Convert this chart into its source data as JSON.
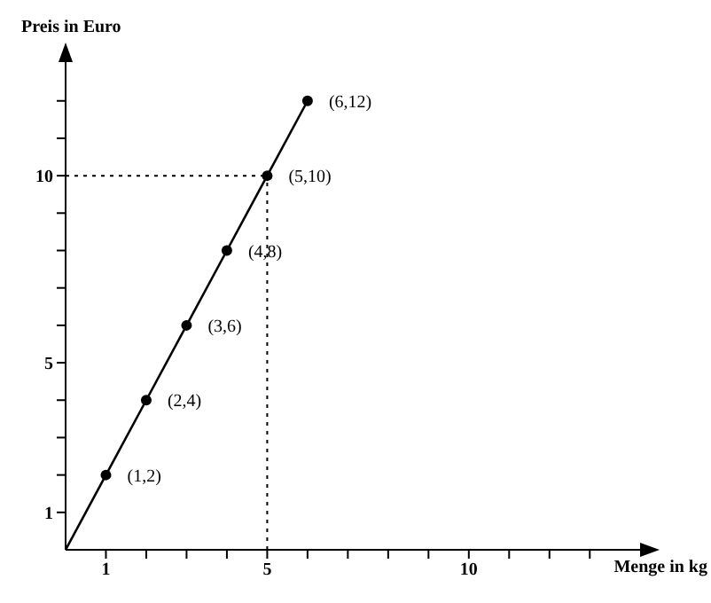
{
  "chart_data": {
    "type": "line",
    "xlabel": "Menge in kg",
    "ylabel": "Preis in Euro",
    "xlim": [
      0,
      13.5
    ],
    "ylim": [
      0,
      12.8
    ],
    "xticks": [
      1,
      {
        "value": 2,
        "label": null
      },
      {
        "value": 3,
        "label": null
      },
      {
        "value": 4,
        "label": null
      },
      5,
      {
        "value": 6,
        "label": null
      },
      {
        "value": 7,
        "label": null
      },
      {
        "value": 8,
        "label": null
      },
      {
        "value": 9,
        "label": null
      },
      10,
      {
        "value": 11,
        "label": null
      },
      {
        "value": 12,
        "label": null
      },
      {
        "value": 13,
        "label": null
      }
    ],
    "yticks": [
      1,
      {
        "value": 2,
        "label": null
      },
      {
        "value": 3,
        "label": null
      },
      {
        "value": 4,
        "label": null
      },
      5,
      {
        "value": 6,
        "label": null
      },
      {
        "value": 7,
        "label": null
      },
      {
        "value": 8,
        "label": null
      },
      {
        "value": 9,
        "label": null
      },
      10,
      {
        "value": 11,
        "label": null
      },
      {
        "value": 12,
        "label": null
      }
    ],
    "grid": false,
    "legend": false,
    "ref_lines": [
      {
        "axis": "x",
        "value": 5,
        "line_style": "dotted",
        "color": "#000000"
      },
      {
        "axis": "y",
        "value": 10,
        "line_style": "dotted",
        "color": "#000000"
      }
    ],
    "series": [
      {
        "type": "line",
        "color": "#000000",
        "marker": "none",
        "x": [
          0,
          1,
          2,
          3,
          4,
          5,
          6
        ],
        "values": [
          0,
          2,
          4,
          6,
          8,
          10,
          12
        ]
      },
      {
        "type": "scatter",
        "color": "#000000",
        "marker": "circle",
        "x": [
          1,
          2,
          3,
          4,
          5,
          6
        ],
        "values": [
          2,
          4,
          6,
          8,
          10,
          12
        ]
      }
    ],
    "annotations": [
      {
        "text": "(1,2)",
        "x": 1,
        "y": 2
      },
      {
        "text": "(2,4)",
        "x": 2,
        "y": 4
      },
      {
        "text": "(3,6)",
        "x": 3,
        "y": 6
      },
      {
        "text": "(4,8)",
        "x": 4,
        "y": 8
      },
      {
        "text": "(5,10)",
        "x": 5,
        "y": 10
      },
      {
        "text": "(6,12)",
        "x": 6,
        "y": 12
      }
    ]
  }
}
